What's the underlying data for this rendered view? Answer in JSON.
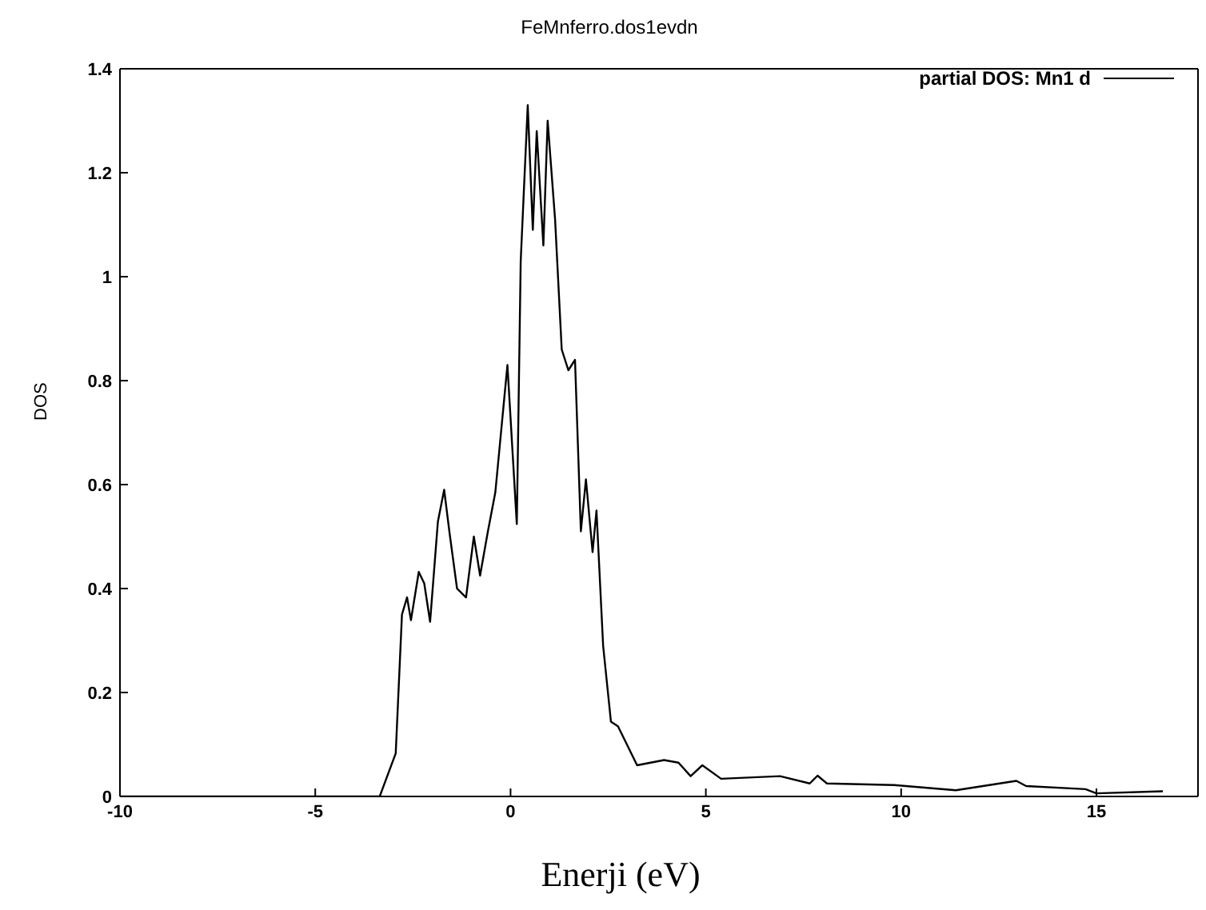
{
  "chart_data": {
    "type": "line",
    "title": "FeMnferro.dos1evdn",
    "xlabel": "Enerji (eV)",
    "ylabel": "DOS",
    "xlim": [
      -10,
      17.6
    ],
    "xticks": [
      -10,
      -5,
      0,
      5,
      10,
      15
    ],
    "ylim": [
      0,
      1.4
    ],
    "yticks": [
      0,
      {
        "value": 0.2,
        "label": "0.2"
      },
      {
        "value": 0.4,
        "label": "0.4"
      },
      {
        "value": 0.6,
        "label": "0.6"
      },
      {
        "value": 0.8,
        "label": "0.8"
      },
      1,
      {
        "value": 1.2,
        "label": "1.2"
      },
      {
        "value": 1.4,
        "label": "1.4"
      }
    ],
    "grid": false,
    "legend": "top right",
    "marker": "none",
    "line_style": "solid",
    "x": [
      -10,
      -3.35,
      -2.94,
      -2.78,
      -2.65,
      -2.55,
      -2.35,
      -2.21,
      -2.06,
      -1.86,
      -1.7,
      -1.56,
      -1.37,
      -1.14,
      -0.94,
      -0.78,
      -0.58,
      -0.39,
      -0.08,
      0.16,
      0.26,
      0.44,
      0.57,
      0.67,
      0.84,
      0.95,
      1.14,
      1.31,
      1.48,
      1.65,
      1.8,
      1.93,
      2.1,
      2.2,
      2.37,
      2.57,
      2.75,
      3.24,
      3.93,
      4.3,
      4.61,
      4.91,
      5.39,
      6.9,
      7.66,
      7.86,
      8.1,
      9.82,
      11.4,
      12.95,
      13.2,
      14.72,
      15.0,
      16.7
    ],
    "series": [
      {
        "name": "partial DOS: Mn1 d",
        "color": "#000000",
        "values": [
          0,
          0,
          0.083,
          0.35,
          0.383,
          0.339,
          0.432,
          0.41,
          0.336,
          0.529,
          0.59,
          0.506,
          0.4,
          0.383,
          0.5,
          0.425,
          0.51,
          0.585,
          0.83,
          0.524,
          1.03,
          1.33,
          1.09,
          1.28,
          1.06,
          1.3,
          1.11,
          0.86,
          0.82,
          0.84,
          0.51,
          0.61,
          0.47,
          0.55,
          0.29,
          0.144,
          0.135,
          0.06,
          0.07,
          0.065,
          0.039,
          0.06,
          0.034,
          0.039,
          0.025,
          0.04,
          0.025,
          0.022,
          0.012,
          0.03,
          0.02,
          0.014,
          0.006,
          0.01
        ]
      }
    ]
  }
}
